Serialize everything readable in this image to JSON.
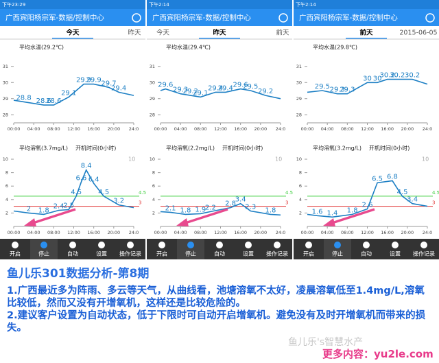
{
  "panels": [
    {
      "status_time": "下午23:29",
      "app_title": "广西宾阳杨宗军-数据/控制中心",
      "tabs": [
        "今天",
        "昨天"
      ],
      "active_tab": 0,
      "temperature": {
        "title": "平均水温(29.2℃)",
        "ylim": [
          27.5,
          31.5
        ],
        "yticks": [
          28,
          29,
          30,
          31
        ],
        "xlim": [
          0,
          24
        ],
        "xticks": [
          {
            "value": 0,
            "label": "00:00"
          },
          {
            "value": 4,
            "label": "04:00"
          },
          {
            "value": 8,
            "label": "08:00"
          },
          {
            "value": 12,
            "label": "12:00"
          },
          {
            "value": 16,
            "label": "16:00"
          },
          {
            "value": 20,
            "label": "20:00"
          },
          {
            "value": 24,
            "label": "24:0"
          }
        ],
        "x": [
          0,
          2,
          6,
          8,
          11,
          14,
          16,
          19,
          21,
          24
        ],
        "values": [
          28.9,
          28.8,
          28.6,
          28.6,
          29.1,
          29.9,
          29.9,
          29.7,
          29.4,
          29.2
        ],
        "labeled": [
          1,
          2,
          3,
          4,
          5,
          6,
          7,
          8
        ]
      },
      "oxygen": {
        "title": "平均溶氧(3.7mg/L)",
        "runtime": "开机时间(0小时)",
        "ylim": [
          0,
          10
        ],
        "yticks": [
          2,
          4,
          6,
          8,
          10
        ],
        "xlim": [
          0,
          24
        ],
        "xticks": [
          {
            "value": 0,
            "label": "00:00"
          },
          {
            "value": 4,
            "label": "04:00"
          },
          {
            "value": 8,
            "label": "08:00"
          },
          {
            "value": 12,
            "label": "12:00"
          },
          {
            "value": 16,
            "label": "16:00"
          },
          {
            "value": 20,
            "label": "20:00"
          },
          {
            "value": 24,
            "label": "24:0"
          }
        ],
        "upper": 4.5,
        "lower": 3,
        "x": [
          0,
          3,
          6,
          9,
          11,
          12.5,
          13.5,
          14.5,
          16,
          18,
          21,
          24
        ],
        "values": [
          2.3,
          2,
          1.8,
          2.4,
          2.5,
          4.5,
          6.6,
          8.4,
          6.4,
          4.5,
          3.2,
          2.8
        ],
        "labeled": [
          1,
          2,
          3,
          4,
          5,
          6,
          7,
          8,
          9,
          10
        ]
      }
    },
    {
      "status_time": "下午2:14",
      "app_title": "广西宾阳杨宗军-数据/控制中心",
      "tabs": [
        "今天",
        "昨天",
        "前天"
      ],
      "active_tab": 1,
      "temperature": {
        "title": "平均水温(29.4℃)",
        "ylim": [
          27.5,
          31.5
        ],
        "yticks": [
          28,
          29,
          30,
          31
        ],
        "xlim": [
          0,
          24
        ],
        "xticks": [
          {
            "value": 0,
            "label": "00:00"
          },
          {
            "value": 4,
            "label": "04:00"
          },
          {
            "value": 8,
            "label": "08:00"
          },
          {
            "value": 12,
            "label": "12:00"
          },
          {
            "value": 16,
            "label": "16:00"
          },
          {
            "value": 20,
            "label": "20:00"
          },
          {
            "value": 24,
            "label": "24:0"
          }
        ],
        "x": [
          0,
          1,
          4,
          6,
          8,
          11,
          13,
          16,
          18,
          21,
          24
        ],
        "values": [
          29.5,
          29.6,
          29.3,
          29.2,
          29.1,
          29.4,
          29.4,
          29.6,
          29.5,
          29.2,
          29
        ],
        "labeled": [
          1,
          2,
          3,
          4,
          5,
          6,
          7,
          8,
          9
        ]
      },
      "oxygen": {
        "title": "平均溶氧(2.2mg/L)",
        "runtime": "开机时间(0小时)",
        "ylim": [
          0,
          10
        ],
        "yticks": [
          2,
          4,
          6,
          8,
          10
        ],
        "xlim": [
          0,
          24
        ],
        "xticks": [
          {
            "value": 0,
            "label": "00:00"
          },
          {
            "value": 4,
            "label": "04:00"
          },
          {
            "value": 8,
            "label": "08:00"
          },
          {
            "value": 12,
            "label": "12:00"
          },
          {
            "value": 16,
            "label": "16:00"
          },
          {
            "value": 20,
            "label": "20:00"
          },
          {
            "value": 24,
            "label": "24:0"
          }
        ],
        "upper": 4.5,
        "lower": 3,
        "x": [
          0,
          2,
          5,
          8,
          10,
          14,
          16,
          18,
          22,
          24
        ],
        "values": [
          2.2,
          2.1,
          1.8,
          1.9,
          2.2,
          2.8,
          3.4,
          2.3,
          1.8,
          1.7
        ],
        "labeled": [
          1,
          2,
          3,
          4,
          5,
          6,
          7,
          8
        ]
      }
    },
    {
      "status_time": "下午2:14",
      "app_title": "广西宾阳杨宗军-数据/控制中心",
      "tabs": [
        "前天",
        "2015-06-05"
      ],
      "active_tab": 0,
      "temperature": {
        "title": "平均水温(29.8℃)",
        "ylim": [
          27.5,
          31.5
        ],
        "yticks": [
          28,
          29,
          30,
          31
        ],
        "xlim": [
          0,
          24
        ],
        "xticks": [
          {
            "value": 0,
            "label": "00:00"
          },
          {
            "value": 4,
            "label": "04:00"
          },
          {
            "value": 8,
            "label": "08:00"
          },
          {
            "value": 12,
            "label": "12:00"
          },
          {
            "value": 16,
            "label": "16:00"
          },
          {
            "value": 20,
            "label": "20:00"
          },
          {
            "value": 24,
            "label": "24:0"
          }
        ],
        "x": [
          0,
          3,
          6,
          8,
          12,
          14,
          16,
          18,
          21,
          24
        ],
        "values": [
          29.4,
          29.5,
          29.3,
          29.3,
          30,
          30,
          30.2,
          30.2,
          30.2,
          29.9
        ],
        "labeled": [
          1,
          2,
          3,
          4,
          5,
          6,
          7,
          8
        ]
      },
      "oxygen": {
        "title": "平均溶氧(3.2mg/L)",
        "runtime": "开机时间(0小时)",
        "ylim": [
          0,
          10
        ],
        "yticks": [
          2,
          4,
          6,
          8,
          10
        ],
        "xlim": [
          0,
          24
        ],
        "xticks": [
          {
            "value": 0,
            "label": "00:00"
          },
          {
            "value": 4,
            "label": "04:00"
          },
          {
            "value": 8,
            "label": "08:00"
          },
          {
            "value": 12,
            "label": "12:00"
          },
          {
            "value": 16,
            "label": "16:00"
          },
          {
            "value": 20,
            "label": "20:00"
          },
          {
            "value": 24,
            "label": "24:0"
          }
        ],
        "upper": 4.5,
        "lower": 3,
        "x": [
          0,
          2,
          5,
          9,
          12,
          14,
          17,
          19,
          21,
          24
        ],
        "values": [
          1.8,
          1.6,
          1.4,
          1.8,
          2.6,
          6.5,
          6.8,
          4.5,
          3.4,
          3
        ],
        "labeled": [
          1,
          2,
          3,
          4,
          5,
          6,
          7,
          8
        ]
      }
    }
  ],
  "toolbar": [
    "开启",
    "停止",
    "自动",
    "设置",
    "操作记录"
  ],
  "article": {
    "title": "鱼儿乐301数据分析-第8期",
    "paragraphs": [
      "1.广西最近多为阵雨、多云等天气，从曲线看，池塘溶氧不太好，凌晨溶氧低至1.4mg/L,溶氧比较低，然而又没有开增氧机，这样还是比较危险的。",
      "2.建议客户设置为自动状态，低于下限时可自动开启增氧机。避免没有及时开增氧机而带来的损失。"
    ],
    "watermark": "鱼儿乐's智慧水产",
    "footer": "更多内容：yu2le.com"
  }
}
